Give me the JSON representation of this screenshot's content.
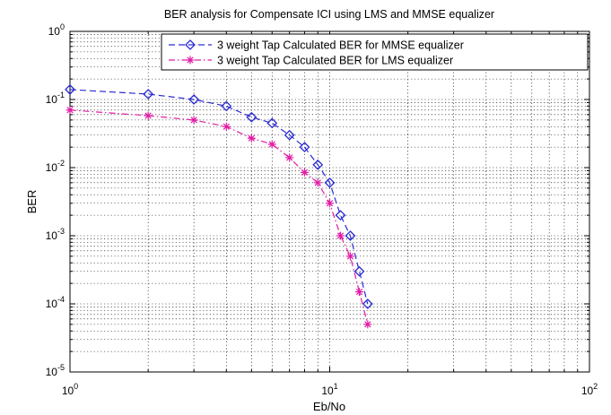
{
  "chart_data": {
    "type": "line",
    "title": "BER analysis for Compensate ICI using  LMS and MMSE equalizer",
    "xlabel": "Eb/No",
    "ylabel": "BER",
    "xscale": "log",
    "yscale": "log",
    "xlim": [
      1,
      100
    ],
    "ylim": [
      1e-05,
      1
    ],
    "grid": true,
    "grid_style": "dotted",
    "legend_position": "top-right",
    "x_ticks": [
      {
        "base": "10",
        "exp": "0",
        "value": 1
      },
      {
        "base": "10",
        "exp": "1",
        "value": 10
      },
      {
        "base": "10",
        "exp": "2",
        "value": 100
      }
    ],
    "y_ticks": [
      {
        "base": "10",
        "exp": "-5",
        "value": 1e-05
      },
      {
        "base": "10",
        "exp": "-4",
        "value": 0.0001
      },
      {
        "base": "10",
        "exp": "-3",
        "value": 0.001
      },
      {
        "base": "10",
        "exp": "-2",
        "value": 0.01
      },
      {
        "base": "10",
        "exp": "-1",
        "value": 0.1
      },
      {
        "base": "10",
        "exp": "0",
        "value": 1
      }
    ],
    "series": [
      {
        "name": "3 weight Tap Calculated BER for MMSE equalizer",
        "color": "#2b2bd6",
        "line_style": "dashed",
        "marker": "diamond",
        "x": [
          1,
          2,
          3,
          4,
          5,
          6,
          7,
          8,
          9,
          10,
          11,
          12,
          13,
          14
        ],
        "y": [
          0.14,
          0.12,
          0.1,
          0.08,
          0.055,
          0.045,
          0.03,
          0.02,
          0.011,
          0.006,
          0.002,
          0.001,
          0.0003,
          0.0001
        ]
      },
      {
        "name": "3 weight Tap Calculated BER for LMS equalizer",
        "color": "#e01ca5",
        "line_style": "dash-dot",
        "marker": "asterisk",
        "x": [
          1,
          2,
          3,
          4,
          5,
          6,
          7,
          8,
          9,
          10,
          11,
          12,
          13,
          14
        ],
        "y": [
          0.07,
          0.058,
          0.05,
          0.04,
          0.027,
          0.022,
          0.014,
          0.0085,
          0.006,
          0.003,
          0.001,
          0.0005,
          0.00015,
          5e-05
        ]
      }
    ]
  }
}
